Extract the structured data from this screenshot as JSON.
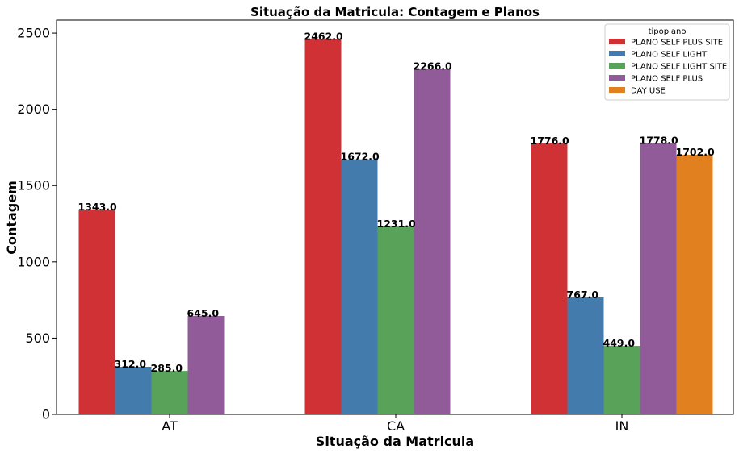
{
  "chart_data": {
    "type": "bar",
    "title": "Situação da Matricula: Contagem e Planos",
    "xlabel": "Situação da Matricula",
    "ylabel": "Contagem",
    "categories": [
      "AT",
      "CA",
      "IN"
    ],
    "ylim": [
      0,
      2585
    ],
    "yticks": [
      0,
      500,
      1000,
      1500,
      2000,
      2500
    ],
    "grid": false,
    "legend_title": "tipoplano",
    "legend_position": "top-right",
    "series": [
      {
        "name": "PLANO SELF PLUS SITE",
        "color": "#d03135",
        "values": [
          1343.0,
          2462.0,
          1776.0
        ],
        "labels": [
          "1343.0",
          "2462.0",
          "1776.0"
        ]
      },
      {
        "name": "PLANO SELF LIGHT",
        "color": "#437bac",
        "values": [
          312.0,
          1672.0,
          767.0
        ],
        "labels": [
          "312.0",
          "1672.0",
          "767.0"
        ]
      },
      {
        "name": "PLANO SELF LIGHT SITE",
        "color": "#58a359",
        "values": [
          285.0,
          1231.0,
          449.0
        ],
        "labels": [
          "285.0",
          "1231.0",
          "449.0"
        ]
      },
      {
        "name": "PLANO SELF PLUS",
        "color": "#915a98",
        "values": [
          645.0,
          2266.0,
          1778.0
        ],
        "labels": [
          "645.0",
          "2266.0",
          "1778.0"
        ]
      },
      {
        "name": "DAY USE",
        "color": "#e1801f",
        "values": [
          null,
          null,
          1702.0
        ],
        "labels": [
          "",
          "",
          "1702.0"
        ]
      }
    ]
  }
}
